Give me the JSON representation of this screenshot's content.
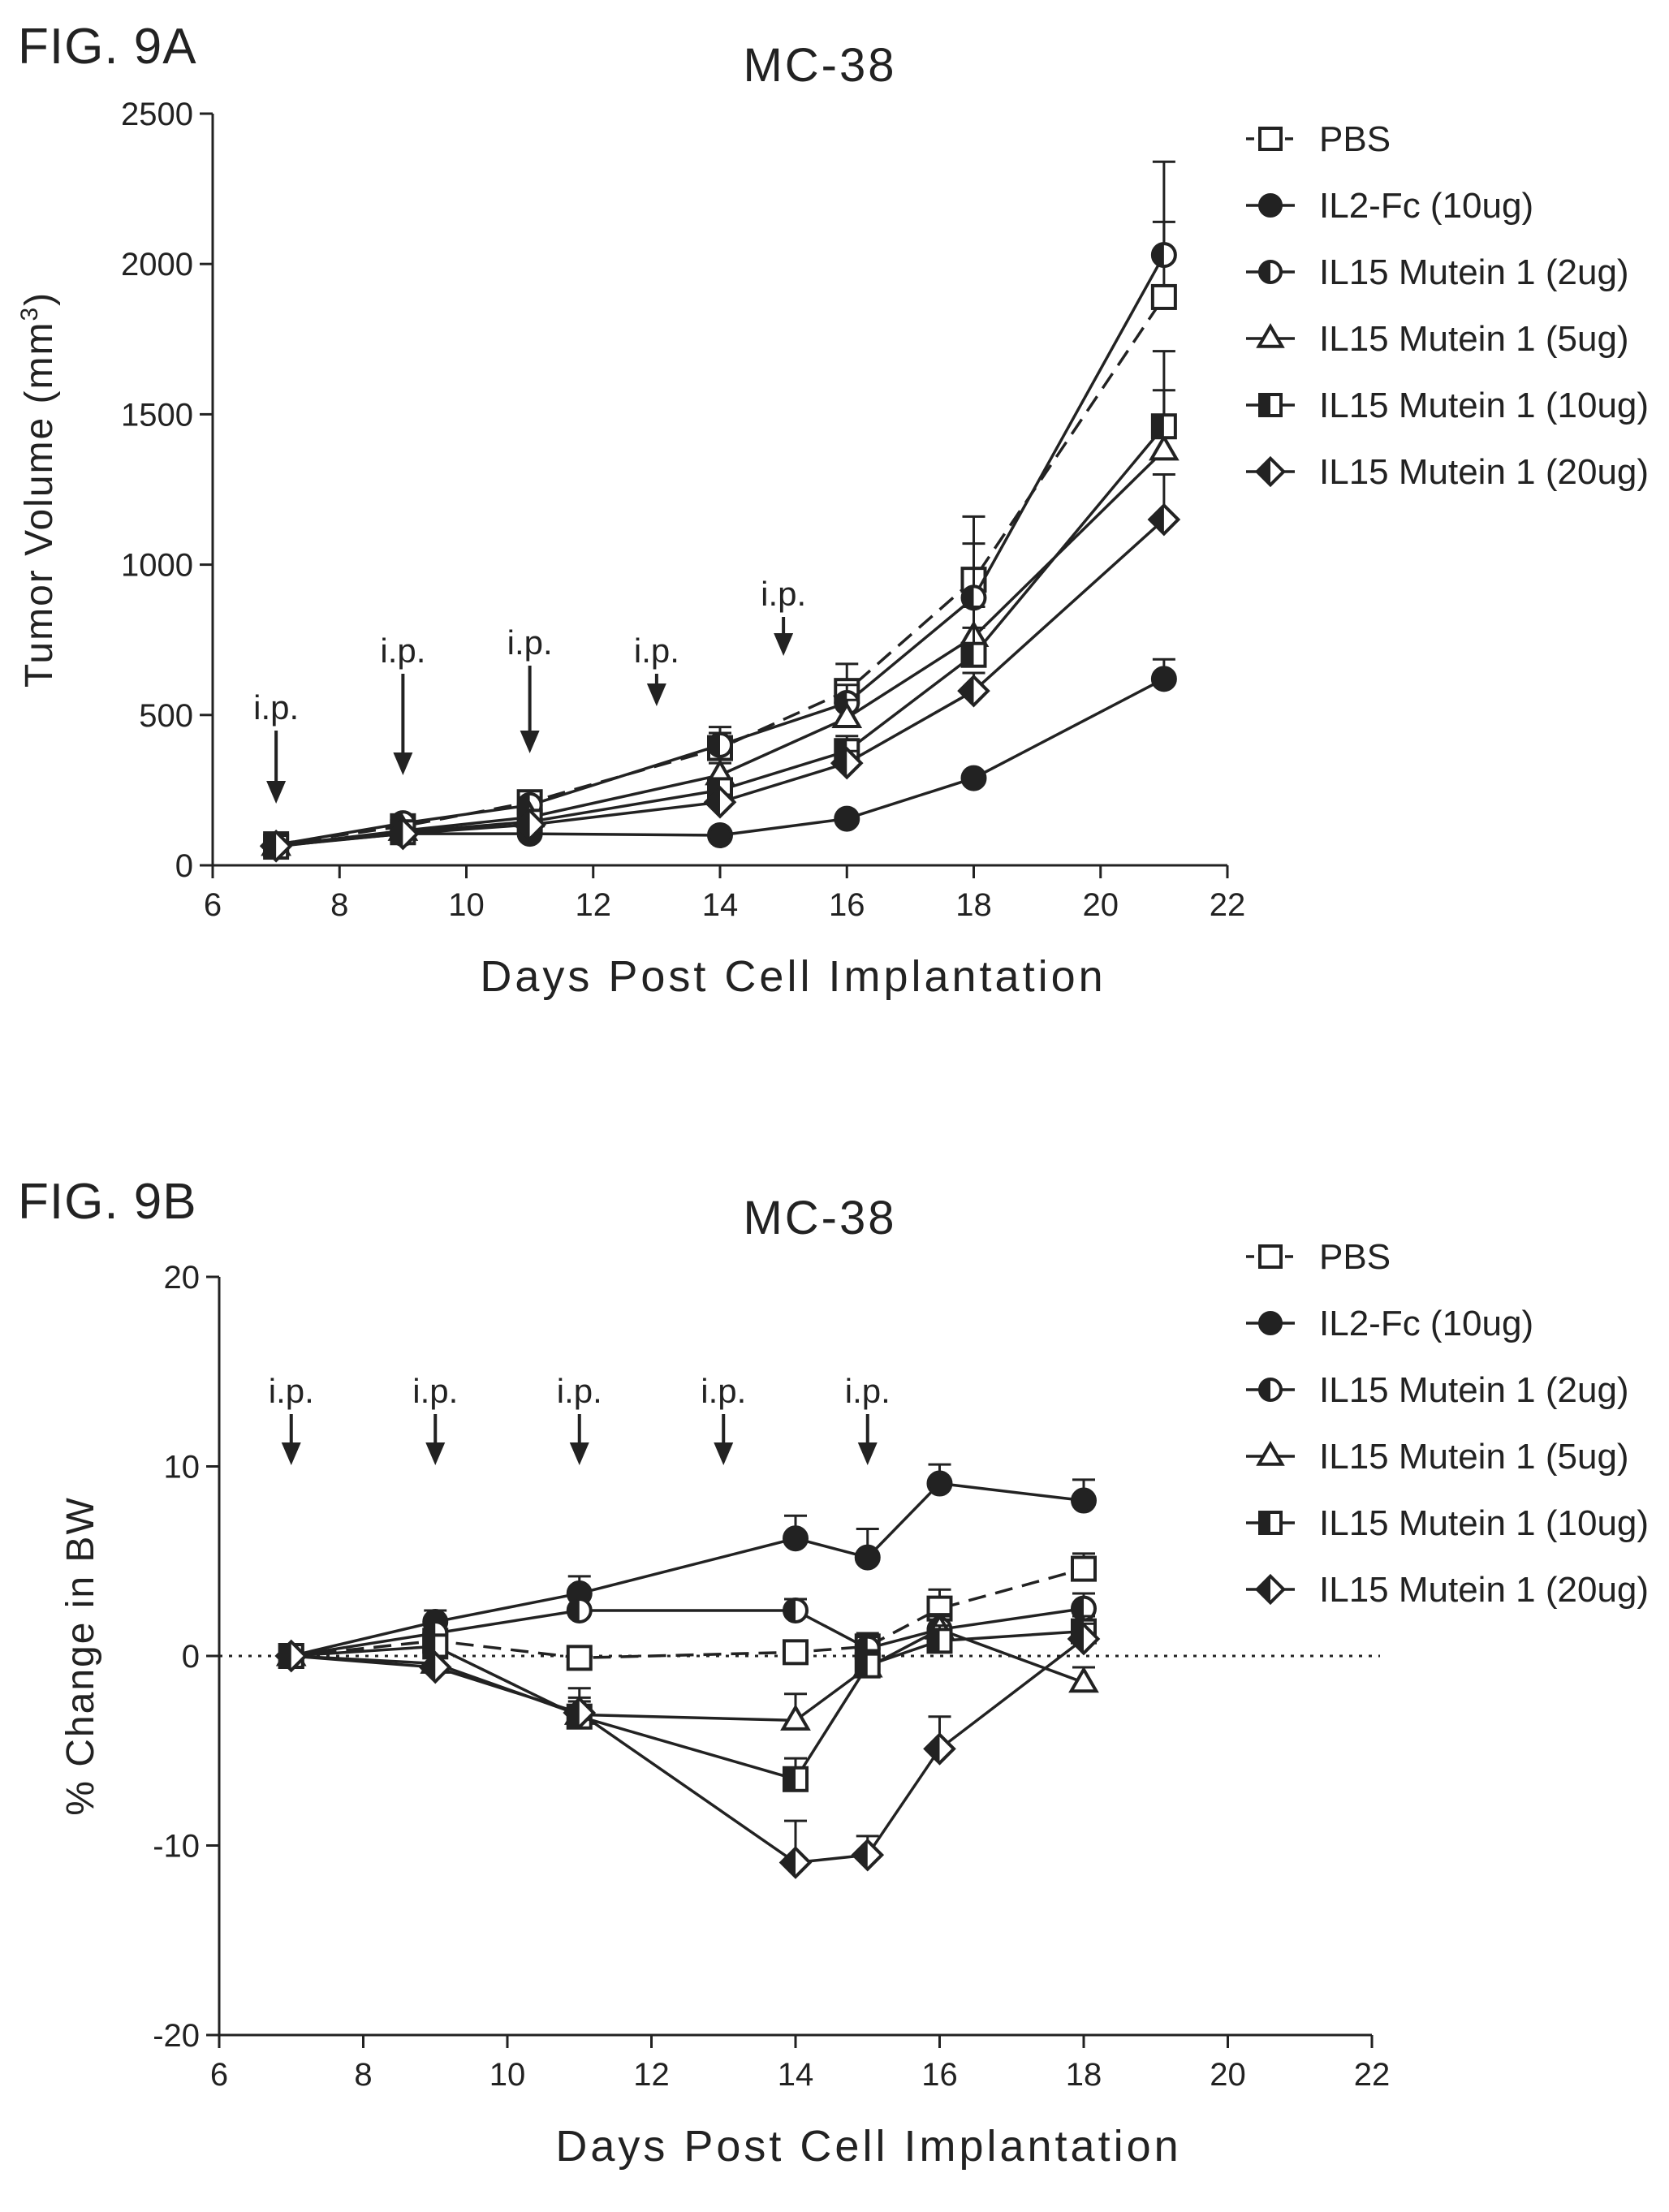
{
  "figures": [
    {
      "label": "FIG. 9A"
    },
    {
      "label": "FIG. 9B"
    }
  ],
  "chart_data": [
    {
      "type": "line",
      "title": "MC-38",
      "xlabel": "Days Post Cell Implantation",
      "ylabel": "Tumor Volume (mm",
      "ylabel_sup": "3",
      "ylabel_end": ")",
      "xlim": [
        6,
        22
      ],
      "ylim": [
        0,
        2500
      ],
      "xticks": [
        6,
        8,
        10,
        12,
        14,
        16,
        18,
        20,
        22
      ],
      "yticks": [
        0,
        500,
        1000,
        1500,
        2000,
        2500
      ],
      "dosing": {
        "label": "i.p.",
        "days": [
          7,
          9,
          11,
          13,
          15
        ]
      },
      "legend_position": "top-right",
      "series": [
        {
          "name": "PBS",
          "marker": "square-open",
          "dashed": true,
          "x": [
            7,
            9,
            11,
            14,
            16,
            18,
            21
          ],
          "y": [
            70,
            130,
            210,
            390,
            580,
            950,
            1890
          ],
          "err": [
            10,
            15,
            20,
            50,
            90,
            210,
            450
          ]
        },
        {
          "name": "IL2-Fc (10ug)",
          "marker": "circle-filled",
          "dashed": false,
          "x": [
            7,
            9,
            11,
            14,
            16,
            18,
            21
          ],
          "y": [
            65,
            105,
            105,
            100,
            155,
            290,
            620
          ],
          "err": [
            8,
            10,
            10,
            10,
            15,
            15,
            65
          ]
        },
        {
          "name": "IL15 Mutein 1 (2ug)",
          "marker": "circle-half",
          "dashed": false,
          "x": [
            7,
            9,
            11,
            14,
            16,
            18,
            21
          ],
          "y": [
            68,
            140,
            200,
            400,
            540,
            890,
            2030
          ],
          "err": [
            8,
            15,
            25,
            60,
            60,
            180,
            110
          ]
        },
        {
          "name": "IL15 Mutein 1 (5ug)",
          "marker": "triangle-open",
          "dashed": false,
          "x": [
            7,
            9,
            11,
            14,
            16,
            18,
            21
          ],
          "y": [
            65,
            115,
            160,
            300,
            490,
            760,
            1380
          ],
          "err": [
            8,
            12,
            20,
            40,
            60,
            100,
            200
          ]
        },
        {
          "name": "IL15 Mutein 1 (10ug)",
          "marker": "square-half",
          "dashed": false,
          "x": [
            7,
            9,
            11,
            14,
            16,
            18,
            21
          ],
          "y": [
            62,
            110,
            145,
            250,
            380,
            700,
            1460
          ],
          "err": [
            8,
            10,
            15,
            30,
            50,
            90,
            250
          ]
        },
        {
          "name": "IL15 Mutein 1 (20ug)",
          "marker": "diamond-half",
          "dashed": false,
          "x": [
            7,
            9,
            11,
            14,
            16,
            18,
            21
          ],
          "y": [
            64,
            105,
            135,
            210,
            340,
            580,
            1150
          ],
          "err": [
            8,
            10,
            15,
            25,
            40,
            60,
            150
          ]
        }
      ]
    },
    {
      "type": "line",
      "title": "MC-38",
      "xlabel": "Days Post Cell Implantation",
      "ylabel": "% Change in BW",
      "xlim": [
        6,
        22
      ],
      "ylim": [
        -20,
        20
      ],
      "xticks": [
        6,
        8,
        10,
        12,
        14,
        16,
        18,
        20,
        22
      ],
      "yticks": [
        -20,
        -10,
        0,
        10,
        20
      ],
      "reference_line": 0,
      "dosing": {
        "label": "i.p.",
        "days": [
          7,
          9,
          11,
          13,
          15
        ]
      },
      "legend_position": "top-right",
      "series": [
        {
          "name": "PBS",
          "marker": "square-open",
          "dashed": true,
          "x": [
            7,
            9,
            11,
            14,
            15,
            16,
            18
          ],
          "y": [
            0,
            0.8,
            -0.1,
            0.2,
            0.5,
            2.5,
            4.6
          ],
          "err": [
            0.2,
            0.6,
            0.6,
            0.6,
            0.7,
            1.0,
            0.8
          ]
        },
        {
          "name": "IL2-Fc (10ug)",
          "marker": "circle-filled",
          "dashed": false,
          "x": [
            7,
            9,
            11,
            14,
            15,
            16,
            18
          ],
          "y": [
            0,
            1.8,
            3.3,
            6.2,
            5.2,
            9.1,
            8.2
          ],
          "err": [
            0.2,
            0.6,
            0.9,
            1.2,
            1.5,
            1.0,
            1.1
          ]
        },
        {
          "name": "IL15 Mutein 1 (2ug)",
          "marker": "circle-half",
          "dashed": false,
          "x": [
            7,
            9,
            11,
            14,
            15,
            16,
            18
          ],
          "y": [
            0,
            1.2,
            2.4,
            2.4,
            0.4,
            1.4,
            2.5
          ],
          "err": [
            0.2,
            0.6,
            0.7,
            0.6,
            0.6,
            0.7,
            0.8
          ]
        },
        {
          "name": "IL15 Mutein 1 (5ug)",
          "marker": "triangle-open",
          "dashed": false,
          "x": [
            7,
            9,
            11,
            14,
            15,
            16,
            18
          ],
          "y": [
            0,
            -0.4,
            -3.1,
            -3.4,
            -0.6,
            1.4,
            -1.4
          ],
          "err": [
            0.2,
            0.6,
            1.4,
            1.4,
            0.8,
            0.8,
            0.8
          ]
        },
        {
          "name": "IL15 Mutein 1 (10ug)",
          "marker": "square-half",
          "dashed": false,
          "x": [
            7,
            9,
            11,
            14,
            15,
            16,
            18
          ],
          "y": [
            0,
            0.5,
            -3.2,
            -6.5,
            -0.5,
            0.8,
            1.3
          ],
          "err": [
            0.2,
            0.6,
            0.8,
            1.1,
            0.8,
            0.8,
            0.8
          ]
        },
        {
          "name": "IL15 Mutein 1 (20ug)",
          "marker": "diamond-half",
          "dashed": false,
          "x": [
            7,
            9,
            11,
            14,
            15,
            16,
            18
          ],
          "y": [
            0,
            -0.6,
            -3.0,
            -10.9,
            -10.5,
            -4.9,
            0.9
          ],
          "err": [
            0.2,
            0.6,
            0.8,
            2.2,
            1.0,
            1.7,
            0.8
          ]
        }
      ]
    }
  ]
}
